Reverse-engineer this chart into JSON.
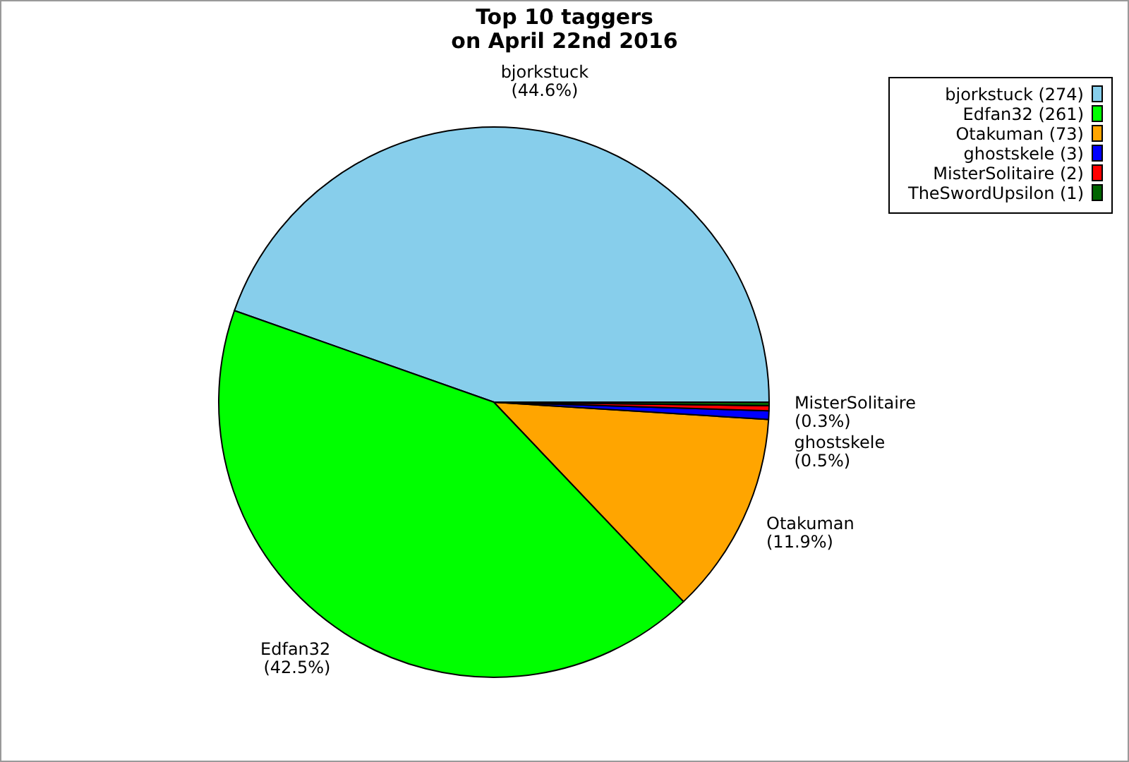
{
  "chart_data": {
    "type": "pie",
    "title": "Top 10 taggers\non April 22nd 2016",
    "categories": [
      "bjorkstuck (274)",
      "Edfan32 (261)",
      "Otakuman (73)",
      "ghostskele (3)",
      "MisterSolitaire (2)",
      "TheSwordUpsilon (1)"
    ],
    "values": [
      44.6,
      42.5,
      11.9,
      0.5,
      0.3,
      0.2
    ],
    "colors": [
      "#87ceeb",
      "#00ff00",
      "#ffa500",
      "#0000ff",
      "#ff0000",
      "#006400"
    ],
    "value_labels": [
      "bjorkstuck\n(44.6%)",
      "Edfan32\n(42.5%)",
      "Otakuman\n(11.9%)",
      "ghostskele\n(0.5%)",
      "MisterSolitaire\n(0.3%)",
      null
    ],
    "legend": "top right"
  }
}
